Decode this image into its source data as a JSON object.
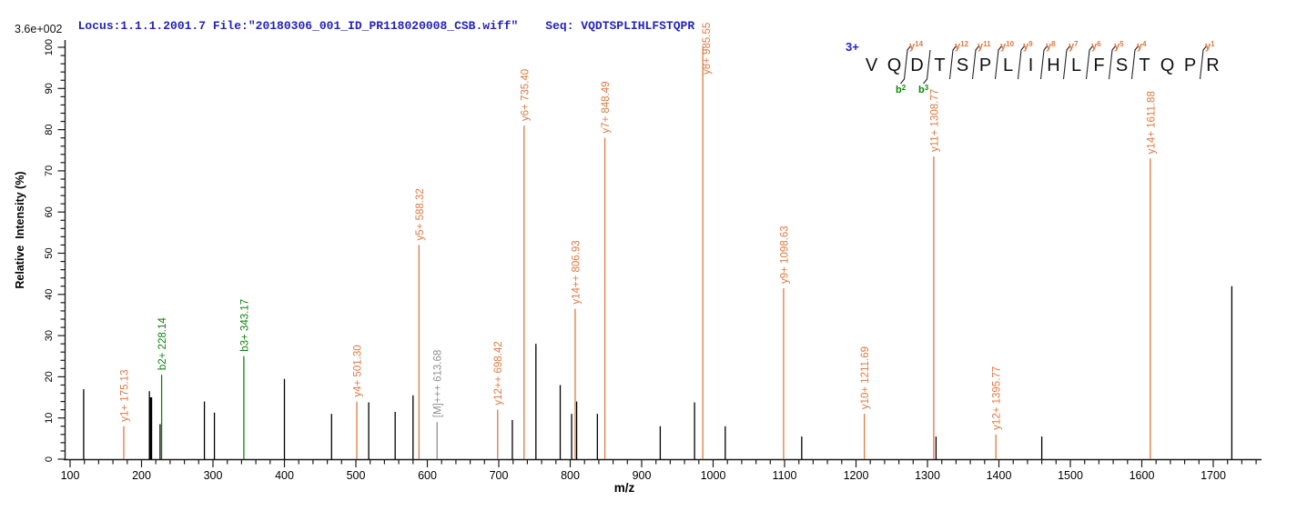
{
  "header": {
    "locus_file_text": "Locus:1.1.1.2001.7 File:\"20180306_001_ID_PR118020008_CSB.wiff\"",
    "seq_text": "Seq: VQDTSPLIHLFSTQPR"
  },
  "scale_label": "3.6e+002",
  "colors": {
    "header_text": "#2323BC",
    "charge_label": "#2222CC",
    "y_ion": "#E07840",
    "b_ion": "#108010",
    "b_tag": "#0A8A0A",
    "precursor": "#8F8F8F",
    "peak_default": "#000000",
    "axis": "#1a1a1a"
  },
  "annotation": {
    "charge_label": "3+",
    "residues": [
      "V",
      "Q",
      "D",
      "T",
      "S",
      "P",
      "L",
      "I",
      "H",
      "L",
      "F",
      "S",
      "T",
      "Q",
      "P",
      "R"
    ],
    "gaps": [
      {
        "after": 1,
        "y": "y14",
        "b": "b2"
      },
      {
        "after": 2,
        "b": "b3"
      },
      {
        "after": 3,
        "y": "y12"
      },
      {
        "after": 4,
        "y": "y11"
      },
      {
        "after": 5,
        "y": "y10"
      },
      {
        "after": 6,
        "y": "y9"
      },
      {
        "after": 7,
        "y": "y8"
      },
      {
        "after": 8,
        "y": "y7"
      },
      {
        "after": 9,
        "y": "y6"
      },
      {
        "after": 10,
        "y": "y5"
      },
      {
        "after": 11,
        "y": "y4"
      },
      {
        "after": 14,
        "y": "y1"
      }
    ]
  },
  "chart_data": {
    "type": "bar",
    "subtype": "ms2-centroid-spectrum",
    "title": "",
    "xlabel": "m/z",
    "ylabel": "Relative  Intensity (%)",
    "intensity_scale_max": "3.6e+002",
    "x_range": [
      86,
      1764
    ],
    "x_tick_major_step": 100,
    "x_tick_minor_step": 20,
    "x_tick_label_min": 100,
    "x_tick_label_max": 1700,
    "y_range": [
      0,
      100
    ],
    "y_tick_major_step": 10,
    "y_tick_minor_step": 2,
    "grid": false,
    "legend": false,
    "peaks": [
      {
        "mz": 119,
        "intensity": 17
      },
      {
        "mz": 175.13,
        "intensity": 8,
        "ion": "y1+",
        "label": "y1+ 175.13",
        "c": "y"
      },
      {
        "mz": 211,
        "intensity": 16.5
      },
      {
        "mz": 213,
        "intensity": 15,
        "w": 3
      },
      {
        "mz": 226,
        "intensity": 8.5
      },
      {
        "mz": 228.14,
        "intensity": 20.5,
        "ion": "b2+",
        "label": "b2+ 228.14",
        "c": "b"
      },
      {
        "mz": 288,
        "intensity": 14
      },
      {
        "mz": 302,
        "intensity": 11.3
      },
      {
        "mz": 343.17,
        "intensity": 25,
        "ion": "b3+",
        "label": "b3+ 343.17",
        "c": "b"
      },
      {
        "mz": 400,
        "intensity": 19.5
      },
      {
        "mz": 466,
        "intensity": 11
      },
      {
        "mz": 501.3,
        "intensity": 14,
        "ion": "y4+",
        "label": "y4+ 501.30",
        "c": "y"
      },
      {
        "mz": 518,
        "intensity": 13.8
      },
      {
        "mz": 555,
        "intensity": 11.5
      },
      {
        "mz": 580,
        "intensity": 15.5
      },
      {
        "mz": 588.32,
        "intensity": 52,
        "ion": "y5+",
        "label": "y5+ 588.32",
        "c": "y"
      },
      {
        "mz": 613.68,
        "intensity": 9,
        "ion": "[M]+++",
        "label": "[M]+++ 613.68",
        "c": "m"
      },
      {
        "mz": 698.42,
        "intensity": 12,
        "ion": "y12++",
        "label": "y12++ 698.42",
        "c": "y"
      },
      {
        "mz": 719,
        "intensity": 9.5
      },
      {
        "mz": 735.4,
        "intensity": 81,
        "ion": "y6+",
        "label": "y6+ 735.40",
        "c": "y"
      },
      {
        "mz": 752,
        "intensity": 28
      },
      {
        "mz": 786,
        "intensity": 18
      },
      {
        "mz": 802,
        "intensity": 11
      },
      {
        "mz": 806.93,
        "intensity": 36.5,
        "ion": "y14++",
        "label": "y14++ 806.93",
        "c": "y"
      },
      {
        "mz": 809,
        "intensity": 14
      },
      {
        "mz": 838,
        "intensity": 11
      },
      {
        "mz": 848.49,
        "intensity": 78,
        "ion": "y7+",
        "label": "y7+ 848.49",
        "c": "y"
      },
      {
        "mz": 926,
        "intensity": 8
      },
      {
        "mz": 974,
        "intensity": 13.8
      },
      {
        "mz": 985.55,
        "intensity": 100,
        "ion": "y8+",
        "label": "y8+ 985.55",
        "c": "y"
      },
      {
        "mz": 1017,
        "intensity": 8
      },
      {
        "mz": 1098.63,
        "intensity": 41.5,
        "ion": "y9+",
        "label": "y9+ 1098.63",
        "c": "y"
      },
      {
        "mz": 1124,
        "intensity": 5.5
      },
      {
        "mz": 1211.69,
        "intensity": 11,
        "ion": "y10+",
        "label": "y10+ 1211.69",
        "c": "y"
      },
      {
        "mz": 1308.77,
        "intensity": 73.5,
        "ion": "y11+",
        "label": "y11+ 1308.77",
        "c": "y"
      },
      {
        "mz": 1312,
        "intensity": 5.5
      },
      {
        "mz": 1395.77,
        "intensity": 6,
        "ion": "y12+",
        "label": "y12+ 1395.77",
        "c": "y"
      },
      {
        "mz": 1460,
        "intensity": 5.5
      },
      {
        "mz": 1611.88,
        "intensity": 73,
        "ion": "y14+",
        "label": "y14+ 1611.88",
        "c": "y"
      },
      {
        "mz": 1726,
        "intensity": 42
      }
    ]
  }
}
